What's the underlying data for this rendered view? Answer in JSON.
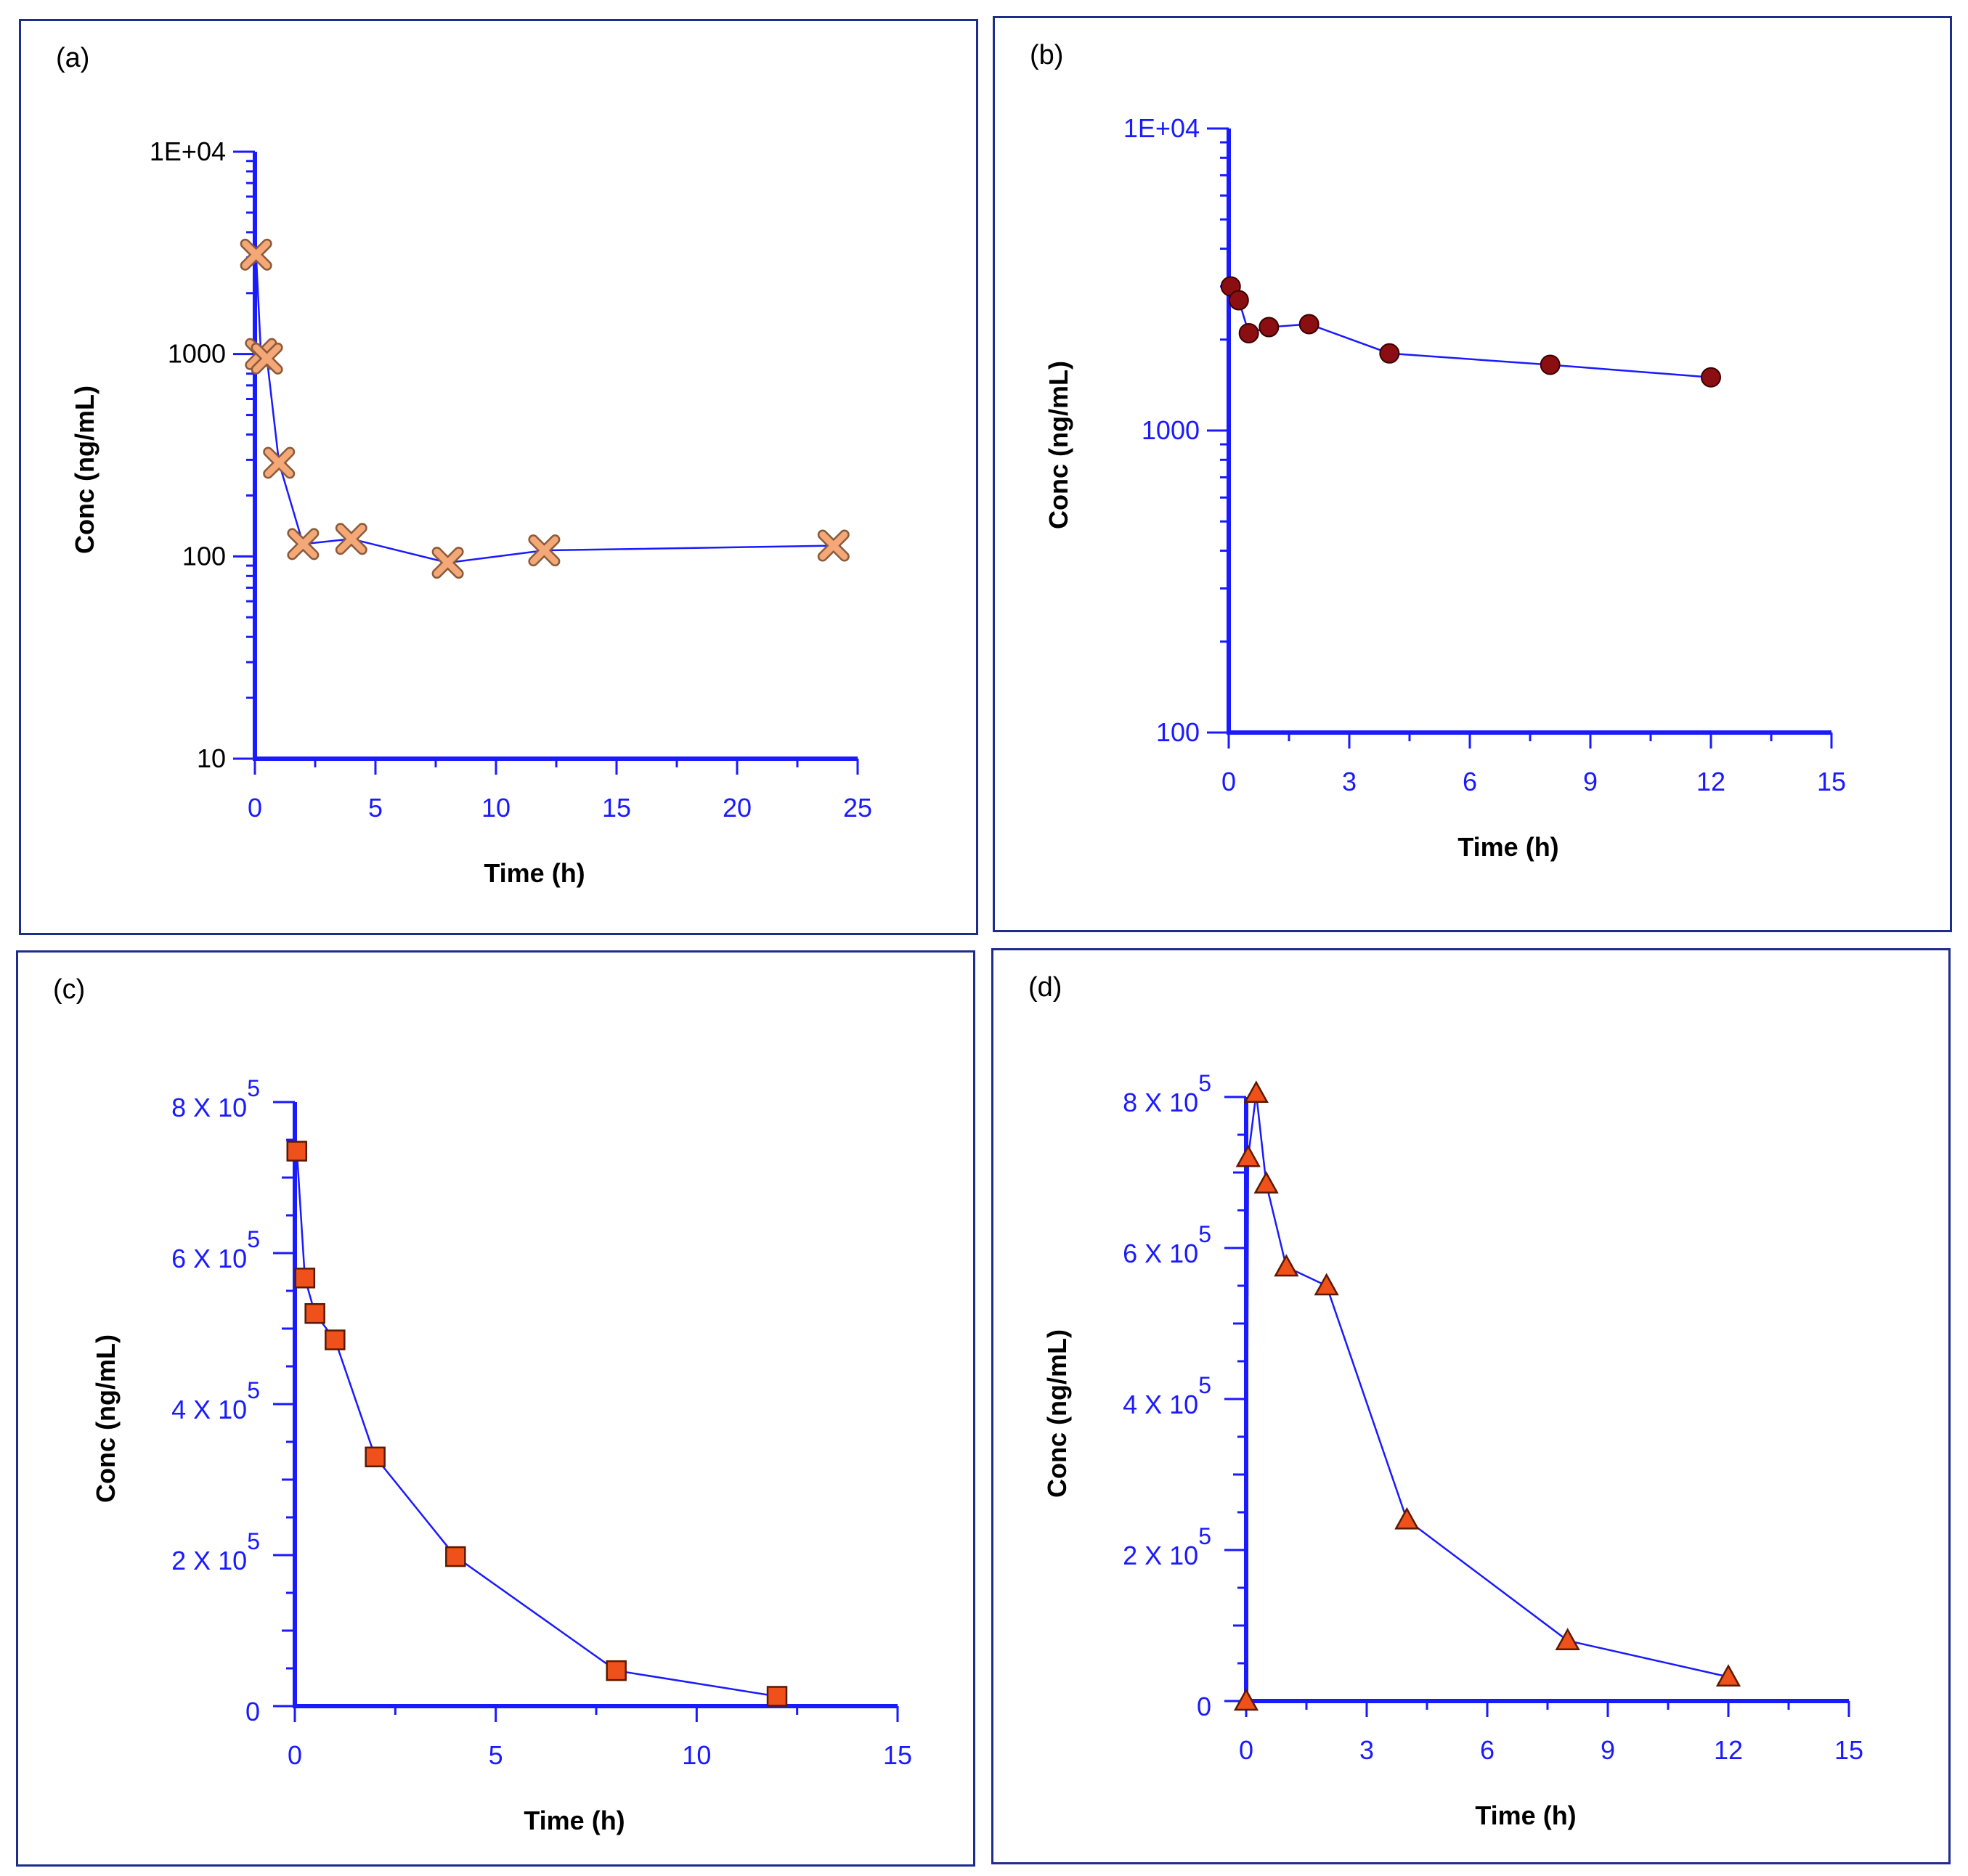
{
  "colors": {
    "axis": "#1a1aff",
    "tick_text": "#1a1aff",
    "line": "#1a1aff",
    "frame": "#1f2d8a"
  },
  "chart_data": [
    {
      "panel": "(a)",
      "type": "line",
      "yscale": "log",
      "xlabel": "Time (h)",
      "ylabel": "Conc (ng/mL)",
      "xlim": [
        0,
        25
      ],
      "ylim": [
        10,
        10000
      ],
      "xticks": [
        0,
        5,
        10,
        15,
        20,
        25
      ],
      "xtick_labels": [
        "0",
        "5",
        "10",
        "15",
        "20",
        "25"
      ],
      "yticks": [
        10,
        100,
        1000,
        10000
      ],
      "ytick_labels": [
        "10",
        "100",
        "1000",
        "1E+04"
      ],
      "marker": "x",
      "marker_color": "#f4a878",
      "marker_stroke": "#8a5a3a",
      "x": [
        0.05,
        0.25,
        0.5,
        1,
        2,
        4,
        8,
        12,
        24
      ],
      "y": [
        3100,
        1000,
        950,
        290,
        115,
        122,
        93,
        107,
        113
      ]
    },
    {
      "panel": "(b)",
      "type": "line",
      "yscale": "log",
      "xlabel": "Time (h)",
      "ylabel": "Conc (ng/mL)",
      "xlim": [
        0,
        15
      ],
      "ylim": [
        100,
        10000
      ],
      "xticks": [
        0,
        3,
        6,
        9,
        12,
        15
      ],
      "xtick_labels": [
        "0",
        "3",
        "6",
        "9",
        "12",
        "15"
      ],
      "yticks": [
        100,
        1000,
        10000
      ],
      "ytick_labels": [
        "100",
        "1000",
        "1E+04"
      ],
      "marker": "circle",
      "marker_color": "#8b0e12",
      "marker_stroke": "#3a0000",
      "x": [
        0.05,
        0.25,
        0.5,
        1,
        2,
        4,
        8,
        12
      ],
      "y": [
        3000,
        2700,
        2100,
        2200,
        2250,
        1800,
        1650,
        1500
      ]
    },
    {
      "panel": "(c)",
      "type": "line",
      "yscale": "linear",
      "xlabel": "Time (h)",
      "ylabel": "Conc (ng/mL)",
      "xlim": [
        0,
        15
      ],
      "ylim": [
        0,
        800000
      ],
      "xticks": [
        0,
        5,
        10,
        15
      ],
      "xtick_labels": [
        "0",
        "5",
        "10",
        "15"
      ],
      "yticks": [
        0,
        200000,
        400000,
        600000,
        800000
      ],
      "ytick_labels": [
        {
          "base": "0",
          "exp": ""
        },
        {
          "base": "2 X 10",
          "exp": "5"
        },
        {
          "base": "4 X 10",
          "exp": "5"
        },
        {
          "base": "6 X 10",
          "exp": "5"
        },
        {
          "base": "8 X 10",
          "exp": "5"
        }
      ],
      "marker": "square",
      "marker_color": "#f0501a",
      "marker_stroke": "#5a1a00",
      "x": [
        0.05,
        0.25,
        0.5,
        1,
        2,
        4,
        8,
        12
      ],
      "y": [
        735000,
        567000,
        520000,
        485000,
        330000,
        198000,
        47000,
        13000
      ]
    },
    {
      "panel": "(d)",
      "type": "line",
      "yscale": "linear",
      "xlabel": "Time (h)",
      "ylabel": "Conc (ng/mL)",
      "xlim": [
        0,
        15
      ],
      "ylim": [
        0,
        800000
      ],
      "xticks": [
        0,
        3,
        6,
        9,
        12,
        15
      ],
      "xtick_labels": [
        "0",
        "3",
        "6",
        "9",
        "12",
        "15"
      ],
      "yticks": [
        0,
        200000,
        400000,
        600000,
        800000
      ],
      "ytick_labels": [
        {
          "base": "0",
          "exp": ""
        },
        {
          "base": "2 X 10",
          "exp": "5"
        },
        {
          "base": "4 X 10",
          "exp": "5"
        },
        {
          "base": "6 X 10",
          "exp": "5"
        },
        {
          "base": "8 X 10",
          "exp": "5"
        }
      ],
      "marker": "triangle",
      "marker_color": "#f0501a",
      "marker_stroke": "#5a1a00",
      "x": [
        0,
        0.05,
        0.25,
        0.5,
        1,
        2,
        4,
        8,
        12
      ],
      "y": [
        0,
        720000,
        805000,
        685000,
        575000,
        550000,
        240000,
        80000,
        32000
      ]
    }
  ]
}
